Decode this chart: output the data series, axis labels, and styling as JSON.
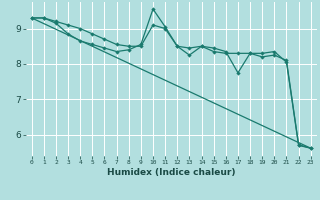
{
  "xlabel": "Humidex (Indice chaleur)",
  "background_color": "#b2dfdf",
  "grid_color": "#ffffff",
  "line_color": "#1a7a6e",
  "xlim": [
    -0.5,
    23.5
  ],
  "ylim": [
    5.4,
    9.75
  ],
  "yticks": [
    6,
    7,
    8,
    9
  ],
  "xtick_labels": [
    "0",
    "1",
    "2",
    "3",
    "4",
    "5",
    "6",
    "7",
    "8",
    "9",
    "10",
    "11",
    "12",
    "13",
    "14",
    "15",
    "16",
    "17",
    "18",
    "19",
    "20",
    "21",
    "22",
    "23"
  ],
  "series1_x": [
    0,
    1,
    2,
    3,
    4,
    5,
    6,
    7,
    8,
    9,
    10,
    11,
    12,
    13,
    14,
    15,
    16,
    17,
    18,
    19,
    20,
    21,
    22,
    23
  ],
  "series1_y": [
    9.3,
    9.3,
    9.15,
    8.85,
    8.65,
    8.55,
    8.45,
    8.35,
    8.4,
    8.55,
    9.55,
    9.05,
    8.5,
    8.25,
    8.5,
    8.35,
    8.3,
    8.3,
    8.3,
    8.3,
    8.35,
    8.05,
    5.7,
    5.62
  ],
  "series2_x": [
    0,
    1,
    2,
    3,
    4,
    5,
    6,
    7,
    8,
    9,
    10,
    11,
    12,
    13,
    14,
    15,
    16,
    17,
    18,
    19,
    20,
    21,
    22,
    23
  ],
  "series2_y": [
    9.3,
    9.3,
    9.2,
    9.1,
    9.0,
    8.85,
    8.7,
    8.55,
    8.5,
    8.5,
    9.1,
    9.0,
    8.5,
    8.45,
    8.5,
    8.45,
    8.35,
    7.75,
    8.3,
    8.2,
    8.25,
    8.1,
    5.72,
    5.62
  ],
  "series3_x": [
    0,
    23
  ],
  "series3_y": [
    9.3,
    5.62
  ]
}
